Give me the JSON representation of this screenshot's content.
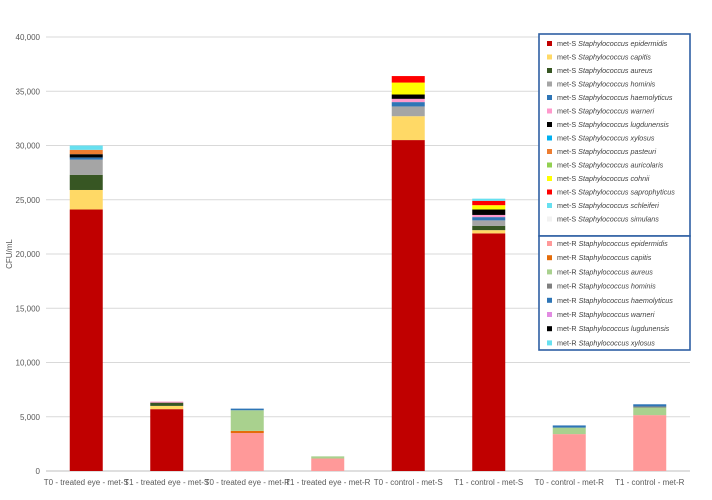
{
  "chart_data": {
    "type": "bar",
    "stacked": true,
    "ylabel": "CFU/mL",
    "ylim": [
      0,
      40000
    ],
    "yticks": [
      0,
      5000,
      10000,
      15000,
      20000,
      25000,
      30000,
      35000,
      40000
    ],
    "ytick_labels": [
      "0",
      "5,000",
      "10,000",
      "15,000",
      "20,000",
      "25,000",
      "30,000",
      "35,000",
      "40,000"
    ],
    "grid": true,
    "legend_position": "right",
    "categories": [
      "T0 - treated eye - met-S",
      "T1 - treated eye - met-S",
      "T0 - treated eye - met-R",
      "T1 - treated eye - met-R",
      "T0 - control - met-S",
      "T1 - control - met-S",
      "T0 - control - met-R",
      "T1 - control - met-R"
    ],
    "series": [
      {
        "name": "met-S Staphylococcus epidermidis",
        "prefix": "met-S",
        "species": "Staphylococcus epidermidis",
        "color": "#C00000",
        "values": [
          24100,
          5700,
          0,
          0,
          30500,
          21900,
          0,
          0
        ]
      },
      {
        "name": "met-S Staphylococcus capitis",
        "prefix": "met-S",
        "species": "Staphylococcus capitis",
        "color": "#FFD966",
        "values": [
          1800,
          300,
          0,
          0,
          2200,
          300,
          0,
          0
        ]
      },
      {
        "name": "met-S Staphylococcus aureus",
        "prefix": "met-S",
        "species": "Staphylococcus aureus",
        "color": "#375623",
        "values": [
          1400,
          300,
          0,
          0,
          0,
          400,
          0,
          0
        ]
      },
      {
        "name": "met-S Staphylococcus hominis",
        "prefix": "met-S",
        "species": "Staphylococcus hominis",
        "color": "#A5A5A5",
        "values": [
          1400,
          0,
          0,
          0,
          900,
          500,
          0,
          0
        ]
      },
      {
        "name": "met-S Staphylococcus haemolyticus",
        "prefix": "met-S",
        "species": "Staphylococcus haemolyticus",
        "color": "#2E75B6",
        "values": [
          200,
          0,
          0,
          0,
          400,
          300,
          0,
          0
        ]
      },
      {
        "name": "met-S Staphylococcus warneri",
        "prefix": "met-S",
        "species": "Staphylococcus warneri",
        "color": "#FF99CC",
        "values": [
          0,
          100,
          0,
          0,
          300,
          200,
          0,
          0
        ]
      },
      {
        "name": "met-S Staphylococcus lugdunensis",
        "prefix": "met-S",
        "species": "Staphylococcus lugdunensis",
        "color": "#000000",
        "values": [
          300,
          0,
          0,
          0,
          400,
          500,
          0,
          0
        ]
      },
      {
        "name": "met-S Staphylococcus xylosus",
        "prefix": "met-S",
        "species": "Staphylococcus xylosus",
        "color": "#00B0F0",
        "values": [
          0,
          0,
          0,
          0,
          0,
          0,
          0,
          0
        ]
      },
      {
        "name": "met-S Staphylococcus pasteuri",
        "prefix": "met-S",
        "species": "Staphylococcus pasteuri",
        "color": "#ED7D31",
        "values": [
          400,
          0,
          0,
          0,
          0,
          0,
          0,
          0
        ]
      },
      {
        "name": "met-S Staphylococcus auricolaris",
        "prefix": "met-S",
        "species": "Staphylococcus auricolaris",
        "color": "#92D050",
        "values": [
          0,
          0,
          0,
          0,
          0,
          0,
          0,
          0
        ]
      },
      {
        "name": "met-S Staphylococcus cohnii",
        "prefix": "met-S",
        "species": "Staphylococcus cohnii",
        "color": "#FFFF00",
        "values": [
          0,
          0,
          0,
          0,
          1100,
          400,
          0,
          0
        ]
      },
      {
        "name": "met-S Staphylococcus saprophyticus",
        "prefix": "met-S",
        "species": "Staphylococcus saprophyticus",
        "color": "#FF0000",
        "values": [
          0,
          0,
          0,
          0,
          600,
          400,
          0,
          0
        ]
      },
      {
        "name": "met-S Staphylococcus schleiferi",
        "prefix": "met-S",
        "species": "Staphylococcus schleiferi",
        "color": "#66E0F0",
        "values": [
          400,
          0,
          0,
          0,
          0,
          200,
          0,
          0
        ]
      },
      {
        "name": "met-S Staphylococcus simulans",
        "prefix": "met-S",
        "species": "Staphylococcus simulans",
        "color": "#F2F2F2",
        "values": [
          0,
          0,
          0,
          0,
          0,
          0,
          0,
          0
        ]
      },
      {
        "name": "met-R Staphylococcus epidermidis",
        "prefix": "met-R",
        "species": "Staphylococcus epidermidis",
        "color": "#FF9999",
        "values": [
          0,
          0,
          3500,
          1150,
          0,
          0,
          3400,
          5150
        ]
      },
      {
        "name": "met-R Staphylococcus capitis",
        "prefix": "met-R",
        "species": "Staphylococcus capitis",
        "color": "#E46C0A",
        "values": [
          0,
          0,
          200,
          0,
          0,
          0,
          0,
          0
        ]
      },
      {
        "name": "met-R Staphylococcus aureus",
        "prefix": "met-R",
        "species": "Staphylococcus aureus",
        "color": "#A9D18E",
        "values": [
          0,
          0,
          1900,
          200,
          0,
          0,
          600,
          700
        ]
      },
      {
        "name": "met-R Staphylococcus hominis",
        "prefix": "met-R",
        "species": "Staphylococcus hominis",
        "color": "#7F7F7F",
        "values": [
          0,
          0,
          0,
          0,
          0,
          0,
          0,
          100
        ]
      },
      {
        "name": "met-R Staphylococcus haemolyticus",
        "prefix": "met-R",
        "species": "Staphylococcus haemolyticus",
        "color": "#2E75B6",
        "values": [
          0,
          0,
          150,
          0,
          0,
          0,
          200,
          200
        ]
      },
      {
        "name": "met-R Staphylococcus warneri",
        "prefix": "met-R",
        "species": "Staphylococcus warneri",
        "color": "#E28BE2",
        "values": [
          0,
          0,
          0,
          0,
          0,
          0,
          0,
          0
        ]
      },
      {
        "name": "met-R Staphylococcus lugdunensis",
        "prefix": "met-R",
        "species": "Staphylococcus lugdunensis",
        "color": "#000000",
        "values": [
          0,
          0,
          0,
          0,
          0,
          0,
          0,
          0
        ]
      },
      {
        "name": "met-R Staphylococcus xylosus",
        "prefix": "met-R",
        "species": "Staphylococcus xylosus",
        "color": "#66E0F0",
        "values": [
          0,
          0,
          0,
          0,
          0,
          0,
          0,
          0
        ]
      }
    ],
    "legend_box_color": "#2E5FA3"
  }
}
